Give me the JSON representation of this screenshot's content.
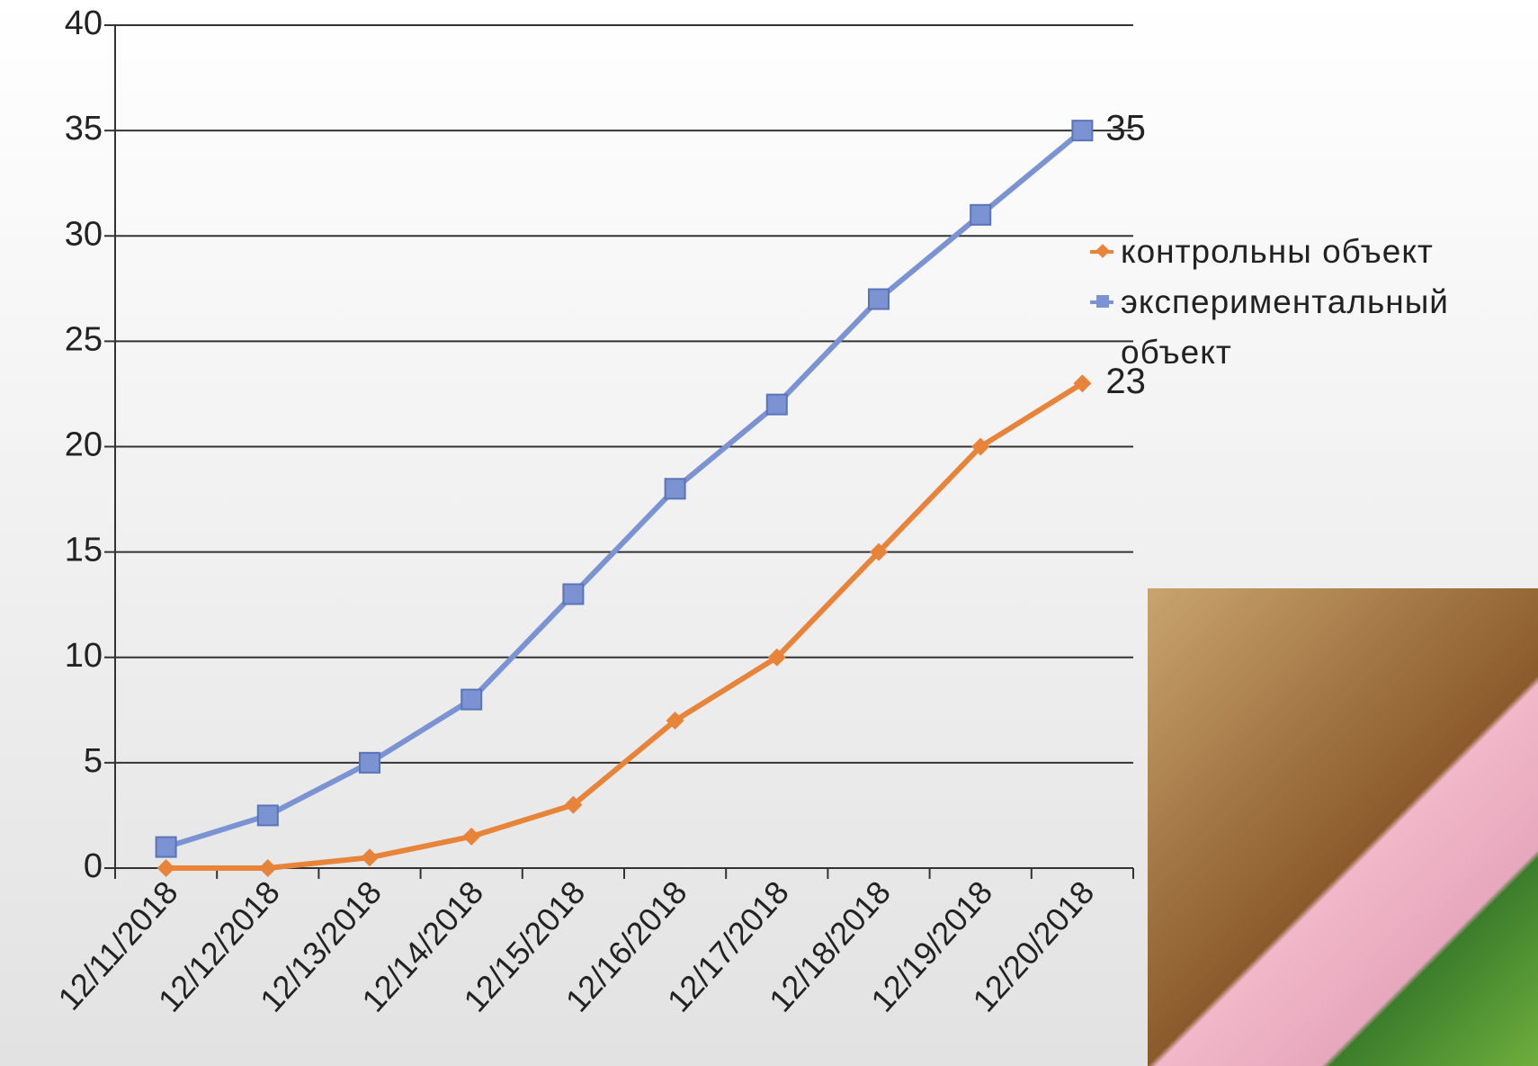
{
  "chart_data": {
    "type": "line",
    "categories": [
      "12/11/2018",
      "12/12/2018",
      "12/13/2018",
      "12/14/2018",
      "12/15/2018",
      "12/16/2018",
      "12/17/2018",
      "12/18/2018",
      "12/19/2018",
      "12/20/2018"
    ],
    "series": [
      {
        "name": "контрольны объект",
        "color": "#e8843a",
        "marker": "diamond",
        "values": [
          0,
          0,
          0.5,
          1.5,
          3,
          7,
          10,
          15,
          20,
          23
        ]
      },
      {
        "name": "экспериментальный объект",
        "color": "#7b93d3",
        "marker": "square",
        "values": [
          1,
          2.5,
          5,
          8,
          13,
          18,
          22,
          27,
          31,
          35
        ]
      }
    ],
    "ylim": [
      0,
      40
    ],
    "yticks": [
      0,
      5,
      10,
      15,
      20,
      25,
      30,
      35,
      40
    ],
    "grid": true,
    "legend": "right"
  }
}
